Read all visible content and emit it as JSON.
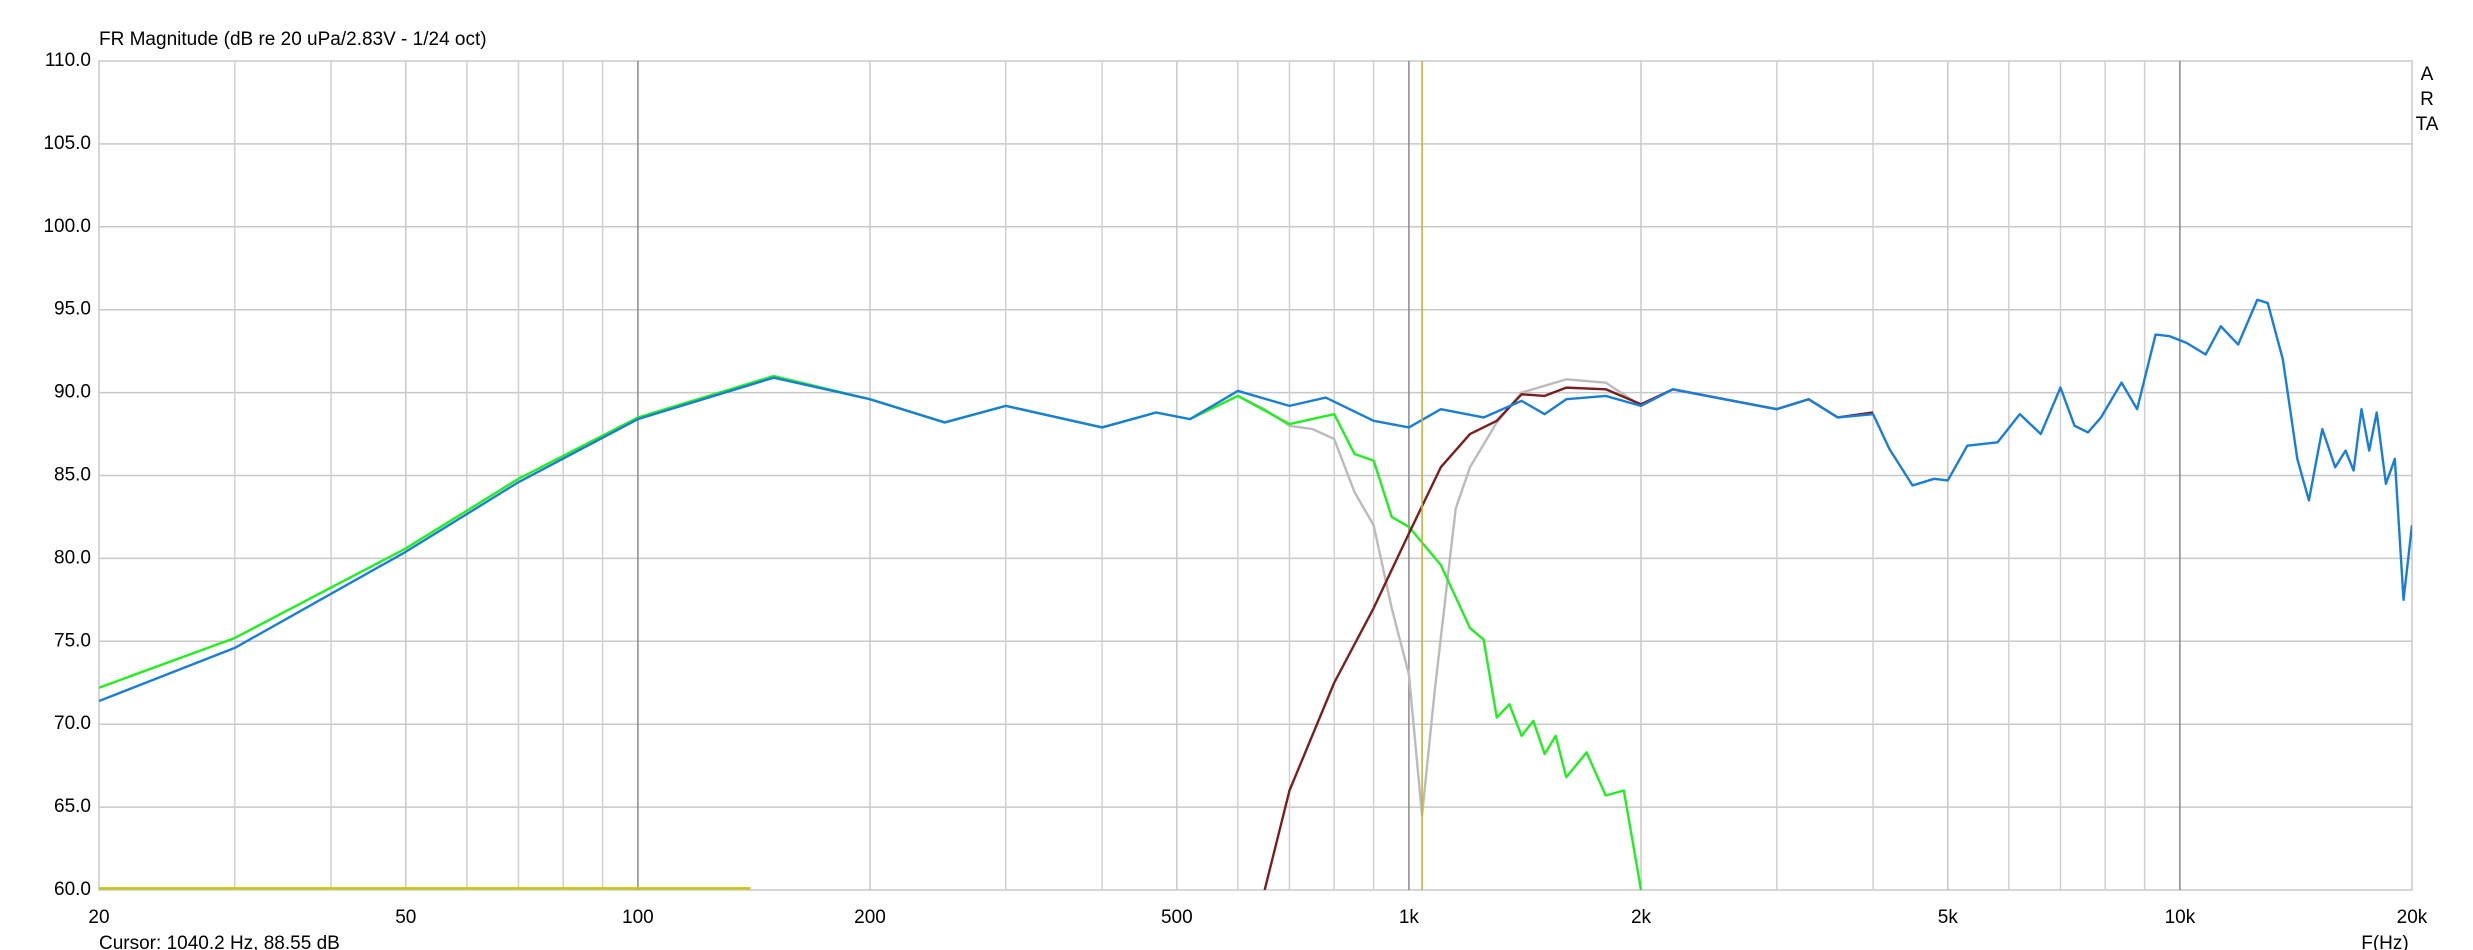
{
  "chart_data": {
    "type": "line",
    "title": "FR Magnitude (dB re 20 uPa/2.83V - 1/24 oct)",
    "x_label": "F(Hz)",
    "watermark": "ARTA",
    "cursor_label": "Cursor: 1040.2 Hz, 88.55 dB",
    "cursor_x": 1040.2,
    "cursor_color": "#c8b040",
    "log_x": true,
    "grid": true,
    "xlim": [
      20,
      20000
    ],
    "ylim": [
      60,
      110
    ],
    "yticks": [
      {
        "value": 60,
        "label": "60.0"
      },
      {
        "value": 65,
        "label": "65.0"
      },
      {
        "value": 70,
        "label": "70.0"
      },
      {
        "value": 75,
        "label": "75.0"
      },
      {
        "value": 80,
        "label": "80.0"
      },
      {
        "value": 85,
        "label": "85.0"
      },
      {
        "value": 90,
        "label": "90.0"
      },
      {
        "value": 95,
        "label": "95.0"
      },
      {
        "value": 100,
        "label": "100.0"
      },
      {
        "value": 105,
        "label": "105.0"
      },
      {
        "value": 110,
        "label": "110.0"
      }
    ],
    "xticks": [
      20,
      50,
      100,
      200,
      500,
      {
        "value": 1000,
        "label": "1k"
      },
      {
        "value": 2000,
        "label": "2k"
      },
      {
        "value": 5000,
        "label": "5k"
      },
      {
        "value": 10000,
        "label": "10k"
      },
      {
        "value": 20000,
        "label": "20k"
      }
    ],
    "x_minor_ticks": [
      30,
      40,
      60,
      70,
      80,
      90,
      300,
      400,
      600,
      700,
      800,
      900,
      3000,
      4000,
      6000,
      7000,
      8000,
      9000
    ],
    "series": [
      {
        "color": "#c8c800",
        "x": [
          20,
          140
        ],
        "values": [
          60.1,
          60.1
        ]
      },
      {
        "color": "#bbbbbb",
        "x": [
          600,
          650,
          700,
          750,
          800,
          850,
          900,
          950,
          1000,
          1040,
          1080,
          1150,
          1200,
          1300,
          1400,
          1600,
          1800,
          2000
        ],
        "values": [
          89.8,
          89.0,
          88.0,
          87.8,
          87.2,
          84.0,
          82.0,
          77.0,
          73.0,
          64.5,
          72.0,
          83.0,
          85.5,
          88.2,
          90.0,
          90.8,
          90.6,
          89.2
        ]
      },
      {
        "color": "#22ee22",
        "x": [
          20,
          30,
          50,
          70,
          100,
          150,
          200,
          250,
          300,
          400,
          470,
          520,
          600,
          700,
          800,
          850,
          900,
          950,
          1000,
          1100,
          1200,
          1250,
          1300,
          1350,
          1400,
          1450,
          1500,
          1550,
          1600,
          1700,
          1800,
          1900,
          2000
        ],
        "values": [
          72.2,
          75.2,
          80.6,
          84.8,
          88.5,
          91.0,
          89.6,
          88.2,
          89.2,
          87.9,
          88.8,
          88.4,
          89.8,
          88.1,
          88.7,
          86.3,
          85.9,
          82.5,
          81.9,
          79.6,
          75.8,
          75.1,
          70.4,
          71.2,
          69.3,
          70.2,
          68.2,
          69.3,
          66.8,
          68.3,
          65.7,
          66.0,
          60.0
        ]
      },
      {
        "color": "#7a1f1f",
        "x": [
          650,
          700,
          800,
          900,
          1000,
          1100,
          1200,
          1300,
          1400,
          1500,
          1600,
          1800,
          2000,
          2200,
          2500,
          3000,
          3300,
          3600,
          4000
        ],
        "values": [
          60.0,
          66.0,
          72.5,
          77.0,
          81.5,
          85.5,
          87.5,
          88.3,
          89.9,
          89.8,
          90.3,
          90.2,
          89.3,
          90.2,
          89.7,
          89.0,
          89.6,
          88.5,
          88.8
        ]
      },
      {
        "color": "#1a7fd4",
        "x": [
          20,
          30,
          50,
          70,
          100,
          150,
          200,
          250,
          300,
          400,
          470,
          520,
          600,
          700,
          780,
          900,
          1000,
          1100,
          1250,
          1400,
          1500,
          1600,
          1800,
          2000,
          2200,
          2500,
          3000,
          3300,
          3600,
          4000,
          4200,
          4500,
          4800,
          5000,
          5300,
          5800,
          6200,
          6600,
          7000,
          7300,
          7600,
          7900,
          8400,
          8800,
          9300,
          9700,
          10200,
          10800,
          11300,
          11900,
          12600,
          13000,
          13600,
          14200,
          14700,
          15300,
          15900,
          16400,
          16800,
          17200,
          17600,
          18000,
          18500,
          19000,
          19500,
          20000
        ],
        "values": [
          71.4,
          74.6,
          80.4,
          84.6,
          88.4,
          90.9,
          89.6,
          88.2,
          89.2,
          87.9,
          88.8,
          88.4,
          90.1,
          89.2,
          89.7,
          88.3,
          87.9,
          89.0,
          88.5,
          89.5,
          88.7,
          89.6,
          89.8,
          89.2,
          90.2,
          89.7,
          89.0,
          89.6,
          88.5,
          88.7,
          86.6,
          84.4,
          84.8,
          84.7,
          86.8,
          87.0,
          88.7,
          87.5,
          90.3,
          88.0,
          87.6,
          88.5,
          90.6,
          89.0,
          93.5,
          93.4,
          93.0,
          92.3,
          94.0,
          92.9,
          95.6,
          95.4,
          92.0,
          86.0,
          83.5,
          87.8,
          85.5,
          86.5,
          85.3,
          89.0,
          86.5,
          88.8,
          84.5,
          86.0,
          77.5,
          82.0
        ]
      }
    ]
  }
}
